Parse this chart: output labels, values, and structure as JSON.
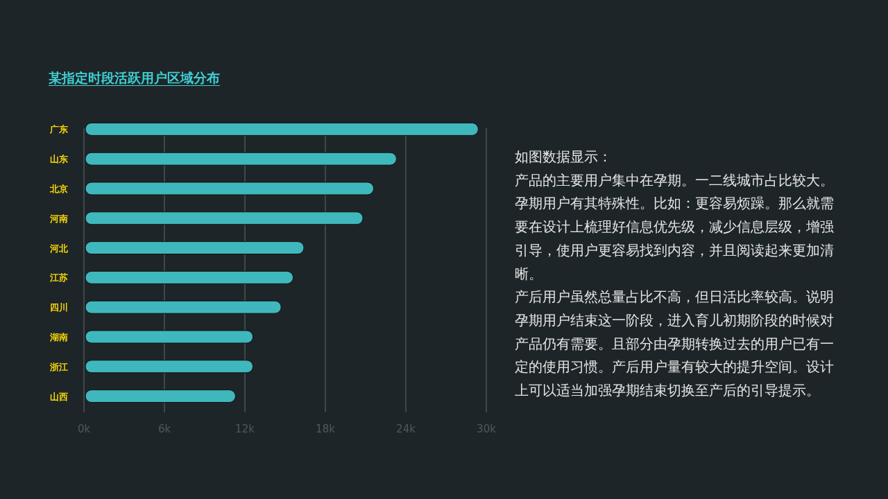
{
  "chart_data": {
    "type": "bar",
    "orientation": "horizontal",
    "title": "某指定时段活跃用户区域分布",
    "categories": [
      "广东",
      "山东",
      "北京",
      "河南",
      "河北",
      "江苏",
      "四川",
      "湖南",
      "浙江",
      "山西"
    ],
    "values": [
      29400,
      23300,
      21600,
      20800,
      16400,
      15600,
      14700,
      12600,
      12600,
      11300
    ],
    "color": "#3fb8bd",
    "xlim": [
      0,
      30000
    ],
    "xticks": [
      {
        "value": 0,
        "label": "0k"
      },
      {
        "value": 6000,
        "label": "6k"
      },
      {
        "value": 12000,
        "label": "12k"
      },
      {
        "value": 18000,
        "label": "18k"
      },
      {
        "value": 24000,
        "label": "24k"
      },
      {
        "value": 30000,
        "label": "30k"
      }
    ],
    "grid": "x",
    "annotations": [
      "如图数据显示：",
      "产品的主要用户集中在孕期。一二线城市占比较大。孕期用户有其特殊性。比如：更容易烦躁。那么就需要在设计上梳理好信息优先级，减少信息层级，增强引导，使用户更容易找到内容，并且阅读起来更加清晰。",
      "产后用户虽然总量占比不高，但日活比率较高。说明孕期用户结束这一阶段，进入育儿初期阶段的时候对产品仍有需要。且部分由孕期转换过去的用户已有一定的使用习惯。产后用户量有较大的提升空间。设计上可以适当加强孕期结束切换至产后的引导提示。"
    ]
  }
}
